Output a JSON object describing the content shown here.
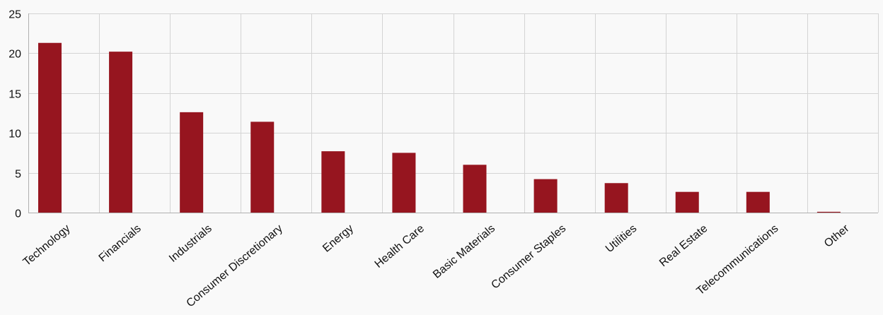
{
  "chart_data": {
    "type": "bar",
    "categories": [
      "Technology",
      "Financials",
      "Industrials",
      "Consumer Discretionary",
      "Energy",
      "Health Care",
      "Basic Materials",
      "Consumer Staples",
      "Utilities",
      "Real Estate",
      "Telecommunications",
      "Other"
    ],
    "values": [
      21.3,
      20.2,
      12.6,
      11.4,
      7.7,
      7.5,
      6.0,
      4.2,
      3.7,
      2.6,
      2.6,
      0.1
    ],
    "ylim": [
      0,
      25
    ],
    "yticks": [
      0,
      5,
      10,
      15,
      20,
      25
    ],
    "grid": true,
    "bar_color": "#96151f",
    "title": "",
    "xlabel": "",
    "ylabel": ""
  }
}
